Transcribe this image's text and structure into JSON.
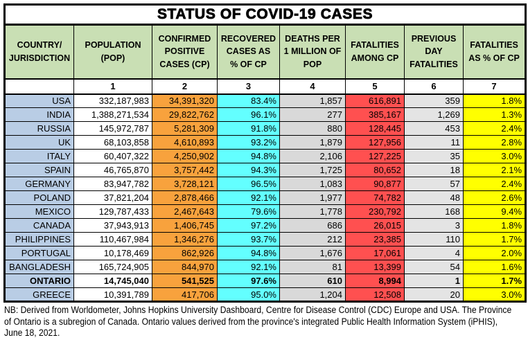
{
  "title": "STATUS OF COVID-19 CASES",
  "columns": [
    {
      "label": "COUNTRY/\nJURISDICTION",
      "number": ""
    },
    {
      "label": "POPULATION\n(POP)",
      "number": "1"
    },
    {
      "label": "CONFIRMED\nPOSITIVE\nCASES (CP)",
      "number": "2"
    },
    {
      "label": "RECOVERED\nCASES AS\n% OF CP",
      "number": "3"
    },
    {
      "label": "DEATHS PER\n1 MILLION OF\nPOP",
      "number": "4"
    },
    {
      "label": "FATALITIES\nAMONG CP",
      "number": "5"
    },
    {
      "label": "PREVIOUS\nDAY\nFATALITIES",
      "number": "6"
    },
    {
      "label": "FATALITIES\nAS % OF CP",
      "number": "7"
    }
  ],
  "rows": [
    {
      "country": "USA",
      "population": "332,187,983",
      "confirmed": "34,391,320",
      "recovered_pct": "83.4%",
      "deaths_per_million": "1,857",
      "fatalities": "616,891",
      "prev_day_fatalities": "359",
      "fatality_pct": "1.8%",
      "bold": false
    },
    {
      "country": "INDIA",
      "population": "1,388,271,534",
      "confirmed": "29,822,762",
      "recovered_pct": "96.1%",
      "deaths_per_million": "277",
      "fatalities": "385,167",
      "prev_day_fatalities": "1,269",
      "fatality_pct": "1.3%",
      "bold": false
    },
    {
      "country": "RUSSIA",
      "population": "145,972,787",
      "confirmed": "5,281,309",
      "recovered_pct": "91.8%",
      "deaths_per_million": "880",
      "fatalities": "128,445",
      "prev_day_fatalities": "453",
      "fatality_pct": "2.4%",
      "bold": false
    },
    {
      "country": "UK",
      "population": "68,103,858",
      "confirmed": "4,610,893",
      "recovered_pct": "93.2%",
      "deaths_per_million": "1,879",
      "fatalities": "127,956",
      "prev_day_fatalities": "11",
      "fatality_pct": "2.8%",
      "bold": false
    },
    {
      "country": "ITALY",
      "population": "60,407,322",
      "confirmed": "4,250,902",
      "recovered_pct": "94.8%",
      "deaths_per_million": "2,106",
      "fatalities": "127,225",
      "prev_day_fatalities": "35",
      "fatality_pct": "3.0%",
      "bold": false
    },
    {
      "country": "SPAIN",
      "population": "46,765,870",
      "confirmed": "3,757,442",
      "recovered_pct": "94.3%",
      "deaths_per_million": "1,725",
      "fatalities": "80,652",
      "prev_day_fatalities": "18",
      "fatality_pct": "2.1%",
      "bold": false
    },
    {
      "country": "GERMANY",
      "population": "83,947,782",
      "confirmed": "3,728,121",
      "recovered_pct": "96.5%",
      "deaths_per_million": "1,083",
      "fatalities": "90,877",
      "prev_day_fatalities": "57",
      "fatality_pct": "2.4%",
      "bold": false
    },
    {
      "country": "POLAND",
      "population": "37,821,204",
      "confirmed": "2,878,466",
      "recovered_pct": "92.1%",
      "deaths_per_million": "1,977",
      "fatalities": "74,782",
      "prev_day_fatalities": "48",
      "fatality_pct": "2.6%",
      "bold": false
    },
    {
      "country": "MEXICO",
      "population": "129,787,433",
      "confirmed": "2,467,643",
      "recovered_pct": "79.6%",
      "deaths_per_million": "1,778",
      "fatalities": "230,792",
      "prev_day_fatalities": "168",
      "fatality_pct": "9.4%",
      "bold": false
    },
    {
      "country": "CANADA",
      "population": "37,943,913",
      "confirmed": "1,406,745",
      "recovered_pct": "97.2%",
      "deaths_per_million": "686",
      "fatalities": "26,015",
      "prev_day_fatalities": "3",
      "fatality_pct": "1.8%",
      "bold": false
    },
    {
      "country": "PHILIPPINES",
      "population": "110,467,984",
      "confirmed": "1,346,276",
      "recovered_pct": "93.7%",
      "deaths_per_million": "212",
      "fatalities": "23,385",
      "prev_day_fatalities": "110",
      "fatality_pct": "1.7%",
      "bold": false
    },
    {
      "country": "PORTUGAL",
      "population": "10,178,469",
      "confirmed": "862,926",
      "recovered_pct": "94.8%",
      "deaths_per_million": "1,676",
      "fatalities": "17,061",
      "prev_day_fatalities": "4",
      "fatality_pct": "2.0%",
      "bold": false
    },
    {
      "country": "BANGLADESH",
      "population": "165,724,905",
      "confirmed": "844,970",
      "recovered_pct": "92.1%",
      "deaths_per_million": "81",
      "fatalities": "13,399",
      "prev_day_fatalities": "54",
      "fatality_pct": "1.6%",
      "bold": false
    },
    {
      "country": "ONTARIO",
      "population": "14,745,040",
      "confirmed": "541,525",
      "recovered_pct": "97.6%",
      "deaths_per_million": "610",
      "fatalities": "8,994",
      "prev_day_fatalities": "1",
      "fatality_pct": "1.7%",
      "bold": true
    },
    {
      "country": "GREECE",
      "population": "10,391,789",
      "confirmed": "417,706",
      "recovered_pct": "95.0%",
      "deaths_per_million": "1,204",
      "fatalities": "12,508",
      "prev_day_fatalities": "20",
      "fatality_pct": "3.0%",
      "bold": false
    }
  ],
  "footnote": {
    "lines": [
      "NB: Derived from Worldometer, Johns Hopkins University Dashboard, Centre for Disease Control (CDC) Europe and USA. The Province",
      "of Ontario is a subregion of Canada. Ontario values derived from the province's integrated Public Health Information System (iPHIS),",
      "June 18, 2021."
    ]
  },
  "colors": {
    "header_green": "#C9DFB4",
    "country_blue": "#B9CDE5",
    "population_white": "#FFFFFF",
    "confirmed_orange": "#F8A23D",
    "recovered_cyan": "#63FFFF",
    "deaths_gray": "#D9D9D9",
    "fatalities_red": "#FF5050",
    "prev_day_gray": "#E4E4E4",
    "fatality_yellow": "#FFFF00",
    "border_black": "#000000"
  }
}
